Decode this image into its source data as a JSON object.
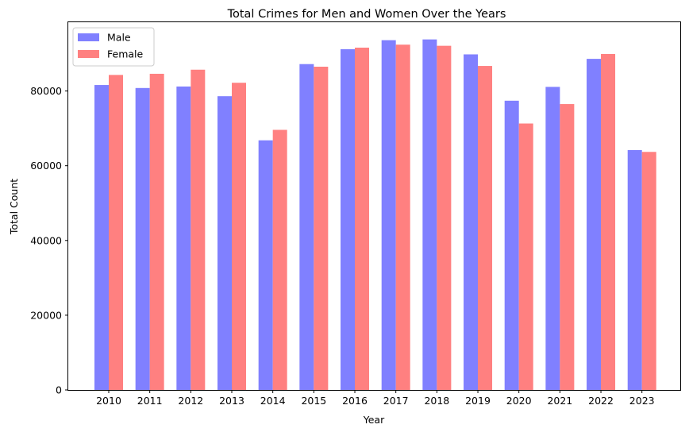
{
  "chart_data": {
    "type": "bar",
    "title": "Total Crimes for Men and Women Over the Years",
    "xlabel": "Year",
    "ylabel": "Total Count",
    "categories": [
      "2010",
      "2011",
      "2012",
      "2013",
      "2014",
      "2015",
      "2016",
      "2017",
      "2018",
      "2019",
      "2020",
      "2021",
      "2022",
      "2023"
    ],
    "series": [
      {
        "name": "Male",
        "color": "#8080ff",
        "values": [
          81600,
          80800,
          81200,
          78600,
          66800,
          87200,
          91200,
          93600,
          93800,
          89800,
          77400,
          81100,
          88600,
          64200
        ]
      },
      {
        "name": "Female",
        "color": "#ff8080",
        "values": [
          84300,
          84600,
          85700,
          82200,
          69600,
          86500,
          91600,
          92400,
          92100,
          86700,
          71300,
          76500,
          89900,
          63700
        ]
      }
    ],
    "ylim": [
      0,
      98400
    ],
    "yticks": [
      0,
      20000,
      40000,
      60000,
      80000
    ],
    "grid": false,
    "legend": "top-left"
  }
}
